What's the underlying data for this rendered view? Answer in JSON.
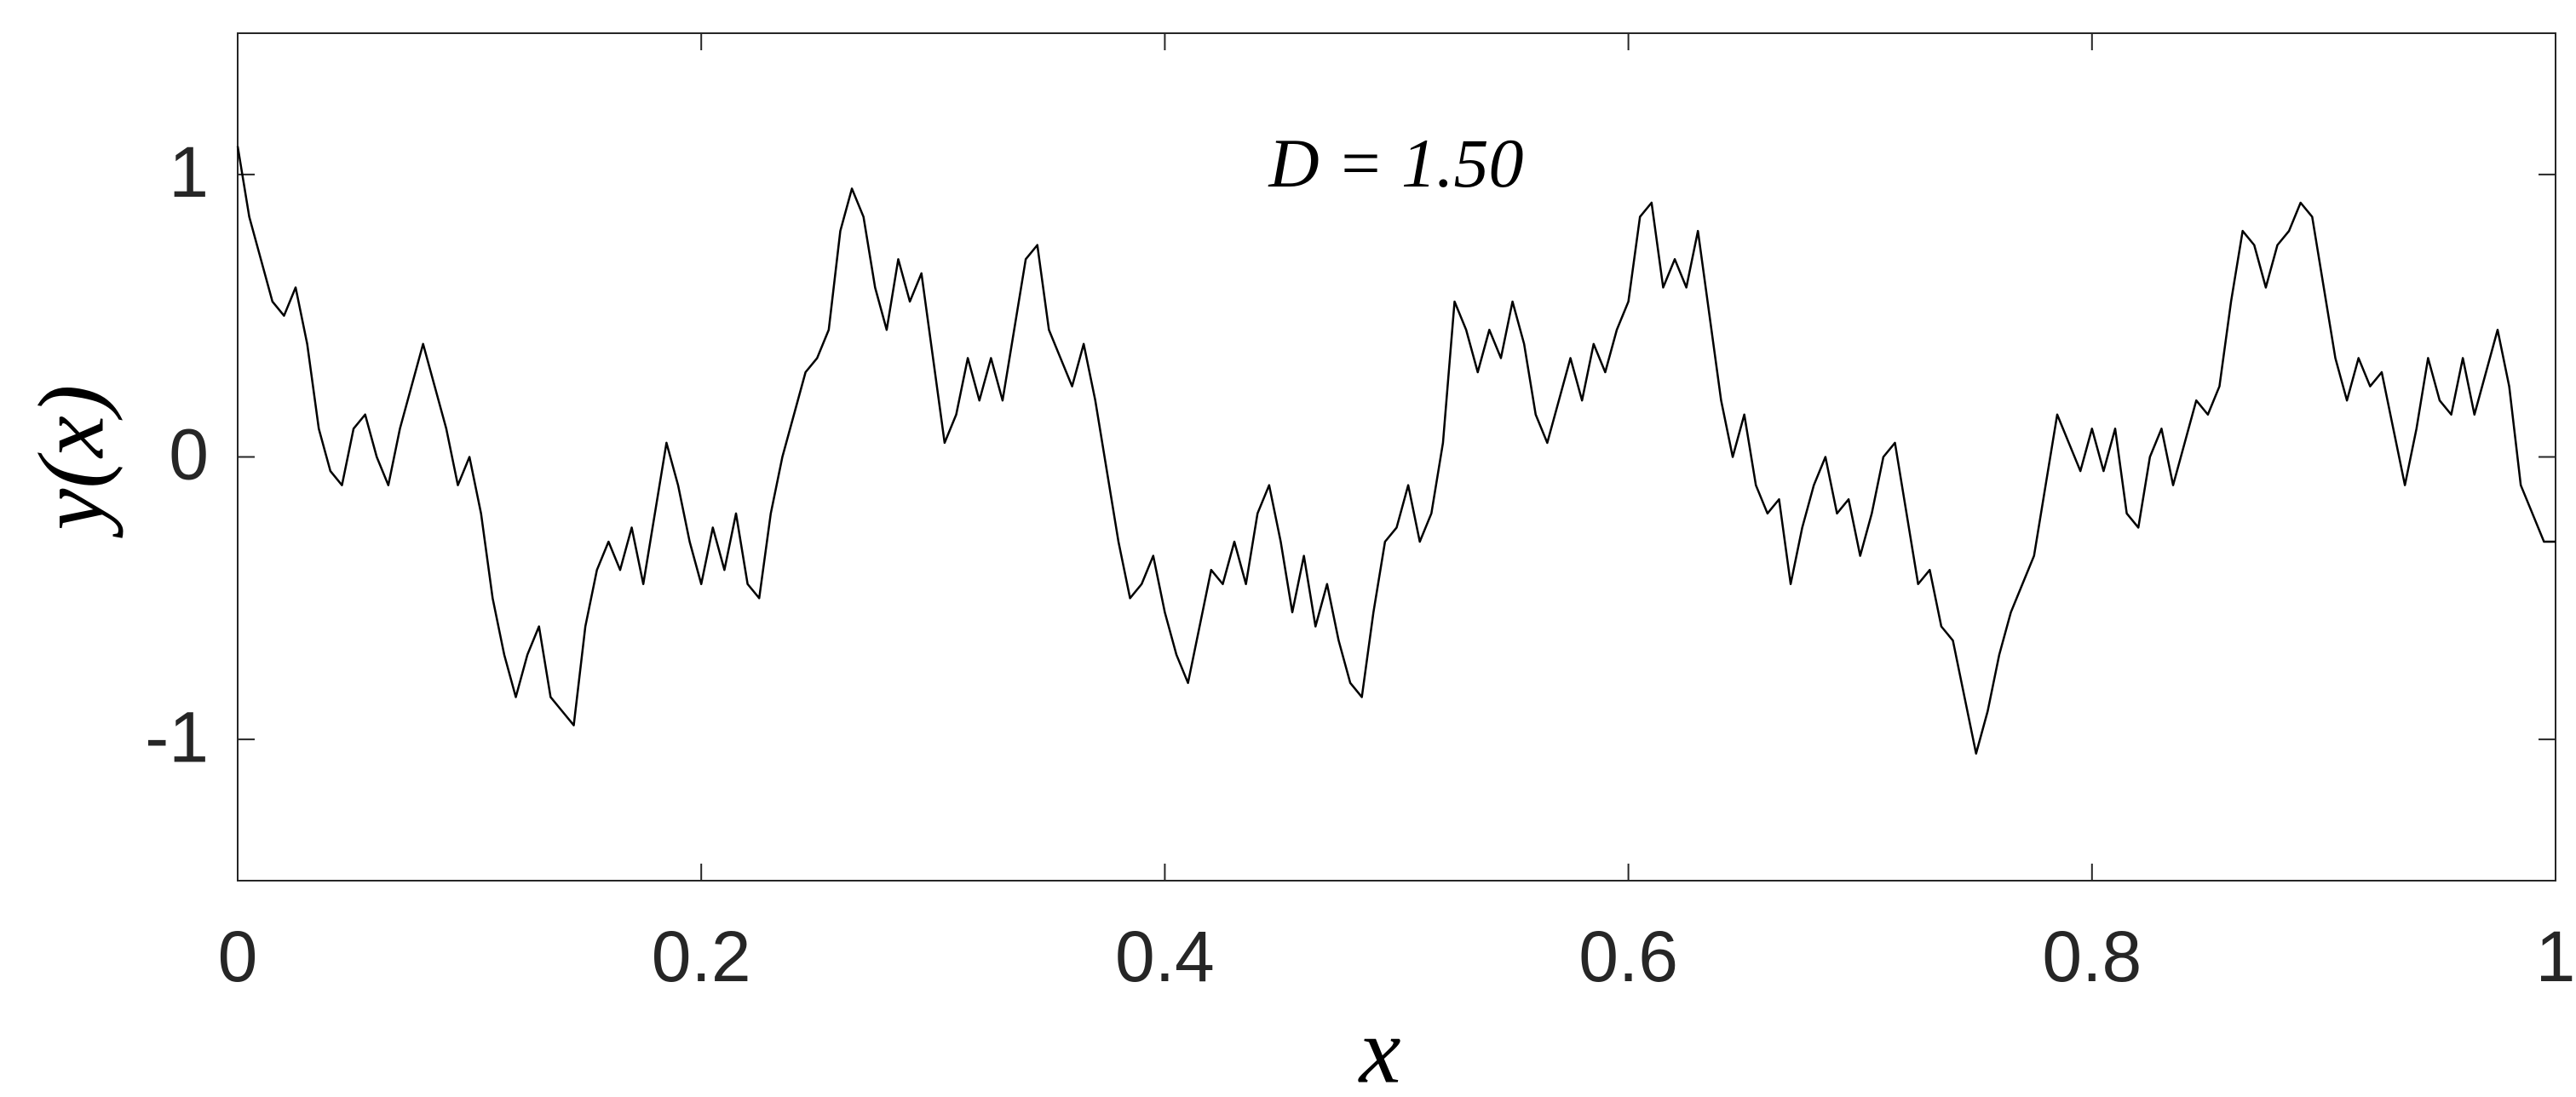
{
  "chart_data": {
    "type": "line",
    "annotation": "D = 1.50",
    "xlabel": "x",
    "ylabel": "y(x)",
    "xlim": [
      0,
      1
    ],
    "ylim": [
      -1.5,
      1.5
    ],
    "xticks": [
      0,
      0.2,
      0.4,
      0.6,
      0.8,
      1
    ],
    "yticks": [
      -1,
      0,
      1
    ],
    "grid": false,
    "color": "#000000",
    "x": [
      0,
      0.005,
      0.01,
      0.015,
      0.02,
      0.025,
      0.03,
      0.035,
      0.04,
      0.045,
      0.05,
      0.055,
      0.06,
      0.065,
      0.07,
      0.075,
      0.08,
      0.085,
      0.09,
      0.095,
      0.1,
      0.105,
      0.11,
      0.115,
      0.12,
      0.125,
      0.13,
      0.135,
      0.14,
      0.145,
      0.15,
      0.155,
      0.16,
      0.165,
      0.17,
      0.175,
      0.18,
      0.185,
      0.19,
      0.195,
      0.2,
      0.205,
      0.21,
      0.215,
      0.22,
      0.225,
      0.23,
      0.235,
      0.24,
      0.245,
      0.25,
      0.255,
      0.26,
      0.265,
      0.27,
      0.275,
      0.28,
      0.285,
      0.29,
      0.295,
      0.3,
      0.305,
      0.31,
      0.315,
      0.32,
      0.325,
      0.33,
      0.335,
      0.34,
      0.345,
      0.35,
      0.355,
      0.36,
      0.365,
      0.37,
      0.375,
      0.38,
      0.385,
      0.39,
      0.395,
      0.4,
      0.405,
      0.41,
      0.415,
      0.42,
      0.425,
      0.43,
      0.435,
      0.44,
      0.445,
      0.45,
      0.455,
      0.46,
      0.465,
      0.47,
      0.475,
      0.48,
      0.485,
      0.49,
      0.495,
      0.5,
      0.505,
      0.51,
      0.515,
      0.52,
      0.525,
      0.53,
      0.535,
      0.54,
      0.545,
      0.55,
      0.555,
      0.56,
      0.565,
      0.57,
      0.575,
      0.58,
      0.585,
      0.59,
      0.595,
      0.6,
      0.605,
      0.61,
      0.615,
      0.62,
      0.625,
      0.63,
      0.635,
      0.64,
      0.645,
      0.65,
      0.655,
      0.66,
      0.665,
      0.67,
      0.675,
      0.68,
      0.685,
      0.69,
      0.695,
      0.7,
      0.705,
      0.71,
      0.715,
      0.72,
      0.725,
      0.73,
      0.735,
      0.74,
      0.745,
      0.75,
      0.755,
      0.76,
      0.765,
      0.77,
      0.775,
      0.78,
      0.785,
      0.79,
      0.795,
      0.8,
      0.805,
      0.81,
      0.815,
      0.82,
      0.825,
      0.83,
      0.835,
      0.84,
      0.845,
      0.85,
      0.855,
      0.86,
      0.865,
      0.87,
      0.875,
      0.88,
      0.885,
      0.89,
      0.895,
      0.9,
      0.905,
      0.91,
      0.915,
      0.92,
      0.925,
      0.93,
      0.935,
      0.94,
      0.945,
      0.95,
      0.955,
      0.96,
      0.965,
      0.97,
      0.975,
      0.98,
      0.985,
      0.99,
      0.995,
      1
    ],
    "values": [
      1.1,
      0.85,
      0.7,
      0.55,
      0.5,
      0.6,
      0.4,
      0.1,
      -0.05,
      -0.1,
      0.1,
      0.15,
      0.0,
      -0.1,
      0.1,
      0.25,
      0.4,
      0.25,
      0.1,
      -0.1,
      0.0,
      -0.2,
      -0.5,
      -0.7,
      -0.85,
      -0.7,
      -0.6,
      -0.85,
      -0.9,
      -0.95,
      -0.6,
      -0.4,
      -0.3,
      -0.4,
      -0.25,
      -0.45,
      -0.2,
      0.05,
      -0.1,
      -0.3,
      -0.45,
      -0.25,
      -0.4,
      -0.2,
      -0.45,
      -0.5,
      -0.2,
      0.0,
      0.15,
      0.3,
      0.35,
      0.45,
      0.8,
      0.95,
      0.85,
      0.6,
      0.45,
      0.7,
      0.55,
      0.65,
      0.35,
      0.05,
      0.15,
      0.35,
      0.2,
      0.35,
      0.2,
      0.45,
      0.7,
      0.75,
      0.45,
      0.35,
      0.25,
      0.4,
      0.2,
      -0.05,
      -0.3,
      -0.5,
      -0.45,
      -0.35,
      -0.55,
      -0.7,
      -0.8,
      -0.6,
      -0.4,
      -0.45,
      -0.3,
      -0.45,
      -0.2,
      -0.1,
      -0.3,
      -0.55,
      -0.35,
      -0.6,
      -0.45,
      -0.65,
      -0.8,
      -0.85,
      -0.55,
      -0.3,
      -0.25,
      -0.1,
      -0.3,
      -0.2,
      0.05,
      0.55,
      0.45,
      0.3,
      0.45,
      0.35,
      0.55,
      0.4,
      0.15,
      0.05,
      0.2,
      0.35,
      0.2,
      0.4,
      0.3,
      0.45,
      0.55,
      0.85,
      0.9,
      0.6,
      0.7,
      0.6,
      0.8,
      0.5,
      0.2,
      0.0,
      0.15,
      -0.1,
      -0.2,
      -0.15,
      -0.45,
      -0.25,
      -0.1,
      0.0,
      -0.2,
      -0.15,
      -0.35,
      -0.2,
      0.0,
      0.05,
      -0.2,
      -0.45,
      -0.4,
      -0.6,
      -0.65,
      -0.85,
      -1.05,
      -0.9,
      -0.7,
      -0.55,
      -0.45,
      -0.35,
      -0.1,
      0.15,
      0.05,
      -0.05,
      0.1,
      -0.05,
      0.1,
      -0.2,
      -0.25,
      0.0,
      0.1,
      -0.1,
      0.05,
      0.2,
      0.15,
      0.25,
      0.55,
      0.8,
      0.75,
      0.6,
      0.75,
      0.8,
      0.9,
      0.85,
      0.6,
      0.35,
      0.2,
      0.35,
      0.25,
      0.3,
      0.1,
      -0.1,
      0.1,
      0.35,
      0.2,
      0.15,
      0.35,
      0.15,
      0.3,
      0.45,
      0.25,
      -0.1,
      -0.2,
      -0.3,
      -0.3
    ]
  }
}
